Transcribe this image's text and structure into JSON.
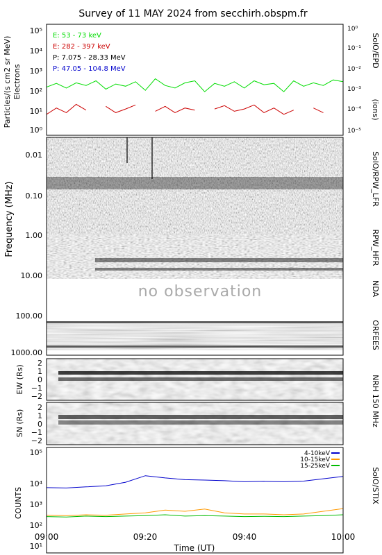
{
  "title": "Survey of 11 MAY 2024 from secchirh.obspm.fr",
  "x_axis": {
    "label": "Time (UT)",
    "ticks": [
      "09:00",
      "09:20",
      "09:40",
      "10:00"
    ]
  },
  "panels": {
    "epd": {
      "ylabel_left": "Particles/(s cm2 sr MeV)",
      "ylabel_left2": "Electrons",
      "ylabel_right": "(ions)",
      "instrument": "SolO/EPD",
      "left_ticks": [
        "10⁰",
        "10¹",
        "10²",
        "10³",
        "10⁴",
        "10⁵"
      ],
      "right_ticks": [
        "10⁻⁵",
        "10⁻⁴",
        "10⁻³",
        "10⁻²",
        "10⁻¹",
        "10⁰"
      ],
      "legend": [
        {
          "label": "E: 53 - 73 keV",
          "color": "#00dd00"
        },
        {
          "label": "E: 282 - 397 keV",
          "color": "#cc0000"
        },
        {
          "label": "P: 7.075 - 28.33 MeV",
          "color": "#000000"
        },
        {
          "label": "P: 47.05 - 104.8 MeV",
          "color": "#0000cc"
        }
      ]
    },
    "radio": {
      "ylabel": "Frequency (MHz)",
      "ticks": [
        "0.01",
        "0.10",
        "1.00",
        "10.00",
        "100.00",
        "1000.00"
      ],
      "labels": {
        "lfr": "SolO/RPW_LFR",
        "hfr": "RPW_HFR",
        "nda": "NDA",
        "orfees": "ORFEES"
      },
      "no_obs": "no observation"
    },
    "nrh": {
      "instrument": "NRH 150 MHz",
      "ew_label": "EW (Rs)",
      "sn_label": "SN (Rs)",
      "ticks": [
        "2",
        "1",
        "0",
        "−1",
        "−2"
      ]
    },
    "stix": {
      "ylabel": "COUNTS",
      "instrument": "SolO/STIX",
      "ticks": [
        "10¹",
        "10²",
        "10³",
        "10⁴",
        "10⁵"
      ],
      "legend": [
        {
          "label": "4-10keV",
          "color": "#0000cc"
        },
        {
          "label": "10-15keV",
          "color": "#ff9900"
        },
        {
          "label": "15-25keV",
          "color": "#00bb00"
        }
      ]
    }
  },
  "chart_data": [
    {
      "type": "line",
      "title": "SolO/EPD",
      "x_range": [
        "09:00",
        "10:00"
      ],
      "y_scale": "log",
      "ylim": [
        0.5,
        100000
      ],
      "series": [
        {
          "name": "E: 53 - 73 keV",
          "color": "#00dd00",
          "x_minutes": [
            0,
            2,
            4,
            6,
            8,
            10,
            12,
            14,
            16,
            18,
            20,
            22,
            24,
            26,
            28,
            30,
            32,
            34,
            36,
            38,
            40,
            42,
            44,
            46,
            48,
            50,
            52,
            54,
            56,
            58,
            60
          ],
          "values": [
            100,
            150,
            90,
            160,
            120,
            200,
            80,
            140,
            110,
            180,
            70,
            250,
            120,
            90,
            160,
            200,
            60,
            150,
            110,
            180,
            90,
            200,
            130,
            150,
            60,
            200,
            110,
            160,
            120,
            220,
            180
          ]
        },
        {
          "name": "E: 282 - 397 keV",
          "color": "#cc0000",
          "x_minutes": [
            0,
            2,
            4,
            6,
            8,
            10,
            12,
            14,
            16,
            18,
            20,
            22,
            24,
            26,
            28,
            30,
            32,
            34,
            36,
            38,
            40,
            42,
            44,
            46,
            48,
            50,
            52,
            54,
            56,
            58,
            60
          ],
          "values": [
            5,
            10,
            6,
            15,
            8,
            null,
            12,
            6,
            9,
            14,
            null,
            7,
            12,
            6,
            10,
            8,
            null,
            9,
            13,
            7,
            9,
            14,
            6,
            10,
            5,
            8,
            null,
            10,
            6,
            null,
            8
          ]
        }
      ]
    },
    {
      "type": "line",
      "title": "SolO/STIX",
      "x_range": [
        "09:00",
        "10:00"
      ],
      "y_scale": "log",
      "ylim": [
        10,
        100000
      ],
      "series": [
        {
          "name": "4-10keV",
          "color": "#0000cc",
          "x_minutes": [
            0,
            4,
            8,
            12,
            16,
            20,
            24,
            28,
            32,
            36,
            40,
            44,
            48,
            52,
            56,
            60
          ],
          "values": [
            3000,
            2900,
            3200,
            3500,
            4800,
            8500,
            7000,
            6000,
            5800,
            5500,
            5000,
            5200,
            5000,
            5300,
            6500,
            8000
          ]
        },
        {
          "name": "10-15keV",
          "color": "#ff9900",
          "x_minutes": [
            0,
            4,
            8,
            12,
            16,
            20,
            24,
            28,
            32,
            36,
            40,
            44,
            48,
            52,
            56,
            60
          ],
          "values": [
            270,
            260,
            280,
            270,
            300,
            330,
            420,
            380,
            460,
            330,
            300,
            300,
            280,
            300,
            380,
            480
          ]
        },
        {
          "name": "15-25keV",
          "color": "#00bb00",
          "x_minutes": [
            0,
            4,
            8,
            12,
            16,
            20,
            24,
            28,
            32,
            36,
            40,
            44,
            48,
            52,
            56,
            60
          ],
          "values": [
            240,
            230,
            250,
            240,
            250,
            260,
            280,
            250,
            260,
            250,
            240,
            245,
            240,
            250,
            260,
            280
          ]
        }
      ]
    }
  ]
}
